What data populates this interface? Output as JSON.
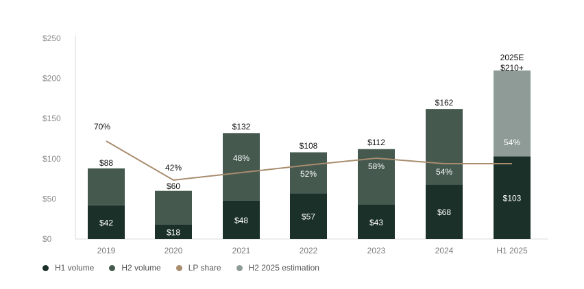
{
  "chart_data": {
    "type": "bar",
    "categories": [
      "2019",
      "2020",
      "2021",
      "2022",
      "2023",
      "2024",
      "H1 2025"
    ],
    "ylim": [
      0,
      250
    ],
    "yticks": [
      {
        "value": 0,
        "label": "$0"
      },
      {
        "value": 50,
        "label": "$50"
      },
      {
        "value": 100,
        "label": "$100"
      },
      {
        "value": 150,
        "label": "$150"
      },
      {
        "value": 200,
        "label": "$200"
      },
      {
        "value": 250,
        "label": "$250"
      }
    ],
    "series": [
      {
        "name": "H1 volume",
        "color": "#1b3029",
        "values": [
          42,
          18,
          48,
          57,
          43,
          68,
          103
        ],
        "labels": [
          "$42",
          "$18",
          "$48",
          "$57",
          "$43",
          "$68",
          "$103"
        ]
      },
      {
        "name": "H2 volume",
        "color": "#45594f",
        "values": [
          46,
          42,
          84,
          51,
          69,
          94,
          null
        ],
        "labels": [
          "",
          "",
          "48%",
          "52%",
          "58%",
          "54%",
          ""
        ]
      },
      {
        "name": "H2 2025 estimation",
        "color": "#8f9b96",
        "values": [
          null,
          null,
          null,
          null,
          null,
          null,
          107
        ],
        "labels": [
          "",
          "",
          "",
          "",
          "",
          "",
          "54%"
        ]
      }
    ],
    "totals": [
      "$88",
      "$60",
      "$132",
      "$108",
      "$112",
      "$162",
      "$210+"
    ],
    "total_prefix": [
      "",
      "",
      "",
      "",
      "",
      "",
      "2025E"
    ],
    "line": {
      "name": "LP share",
      "color": "#a88c6e",
      "values": [
        70,
        42,
        48,
        52,
        58,
        54,
        54
      ],
      "labels": [
        "70%",
        "42%",
        "",
        "",
        "",
        "",
        ""
      ]
    },
    "legend": [
      {
        "label": "H1 volume",
        "color": "#1b3029"
      },
      {
        "label": "H2  volume",
        "color": "#45594f"
      },
      {
        "label": "LP share",
        "color": "#a88c6e"
      },
      {
        "label": "H2 2025 estimation",
        "color": "#8f9b96"
      }
    ],
    "grid": false,
    "legend_position": "bottom-left"
  }
}
